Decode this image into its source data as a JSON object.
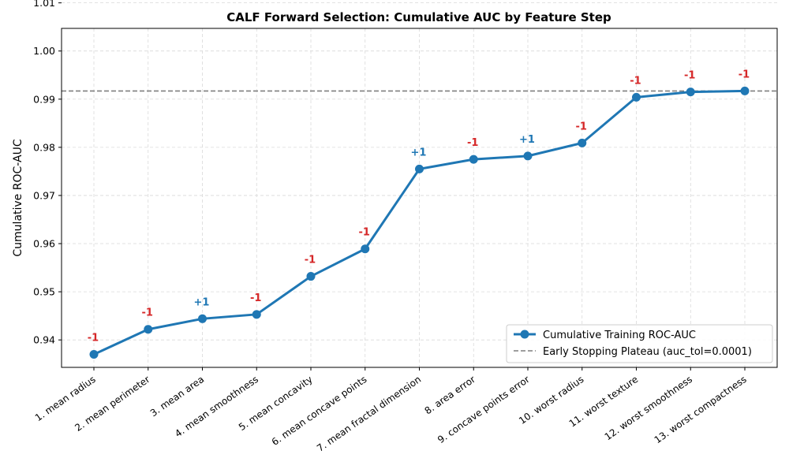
{
  "chart_data": {
    "type": "line",
    "title": "CALF Forward Selection: Cumulative AUC by Feature Step",
    "xlabel": "",
    "ylabel": "Cumulative ROC-AUC",
    "ylim": [
      0.9343,
      1.0047
    ],
    "yticks": [
      0.94,
      0.95,
      0.96,
      0.97,
      0.98,
      0.99,
      1.0,
      1.01
    ],
    "ytick_labels": [
      "0.94",
      "0.95",
      "0.96",
      "0.97",
      "0.98",
      "0.99",
      "1.00",
      "1.01"
    ],
    "categories": [
      "1. mean radius",
      "2. mean perimeter",
      "3. mean area",
      "4. mean smoothness",
      "5. mean concavity",
      "6. mean concave points",
      "7. mean fractal dimension",
      "8. area error",
      "9. concave points error",
      "10. worst radius",
      "11. worst texture",
      "12. worst smoothness",
      "13. worst compactness"
    ],
    "series": [
      {
        "name": "Cumulative Training ROC-AUC",
        "color": "#1f77b4",
        "values": [
          0.937,
          0.9422,
          0.9444,
          0.9453,
          0.9532,
          0.9589,
          0.9755,
          0.9775,
          0.9782,
          0.9809,
          0.9904,
          0.9915,
          0.9917
        ]
      }
    ],
    "signs": [
      "-1",
      "-1",
      "+1",
      "-1",
      "-1",
      "-1",
      "+1",
      "-1",
      "+1",
      "-1",
      "-1",
      "-1",
      "-1"
    ],
    "sign_colors": {
      "positive": "#1f77b4",
      "negative": "#d62728"
    },
    "reference_line": {
      "name": "Early Stopping Plateau (auc_tol=0.0001)",
      "value": 0.9917,
      "color": "#7f7f7f",
      "style": "dashed"
    },
    "grid": true,
    "legend_position": "lower-right"
  }
}
